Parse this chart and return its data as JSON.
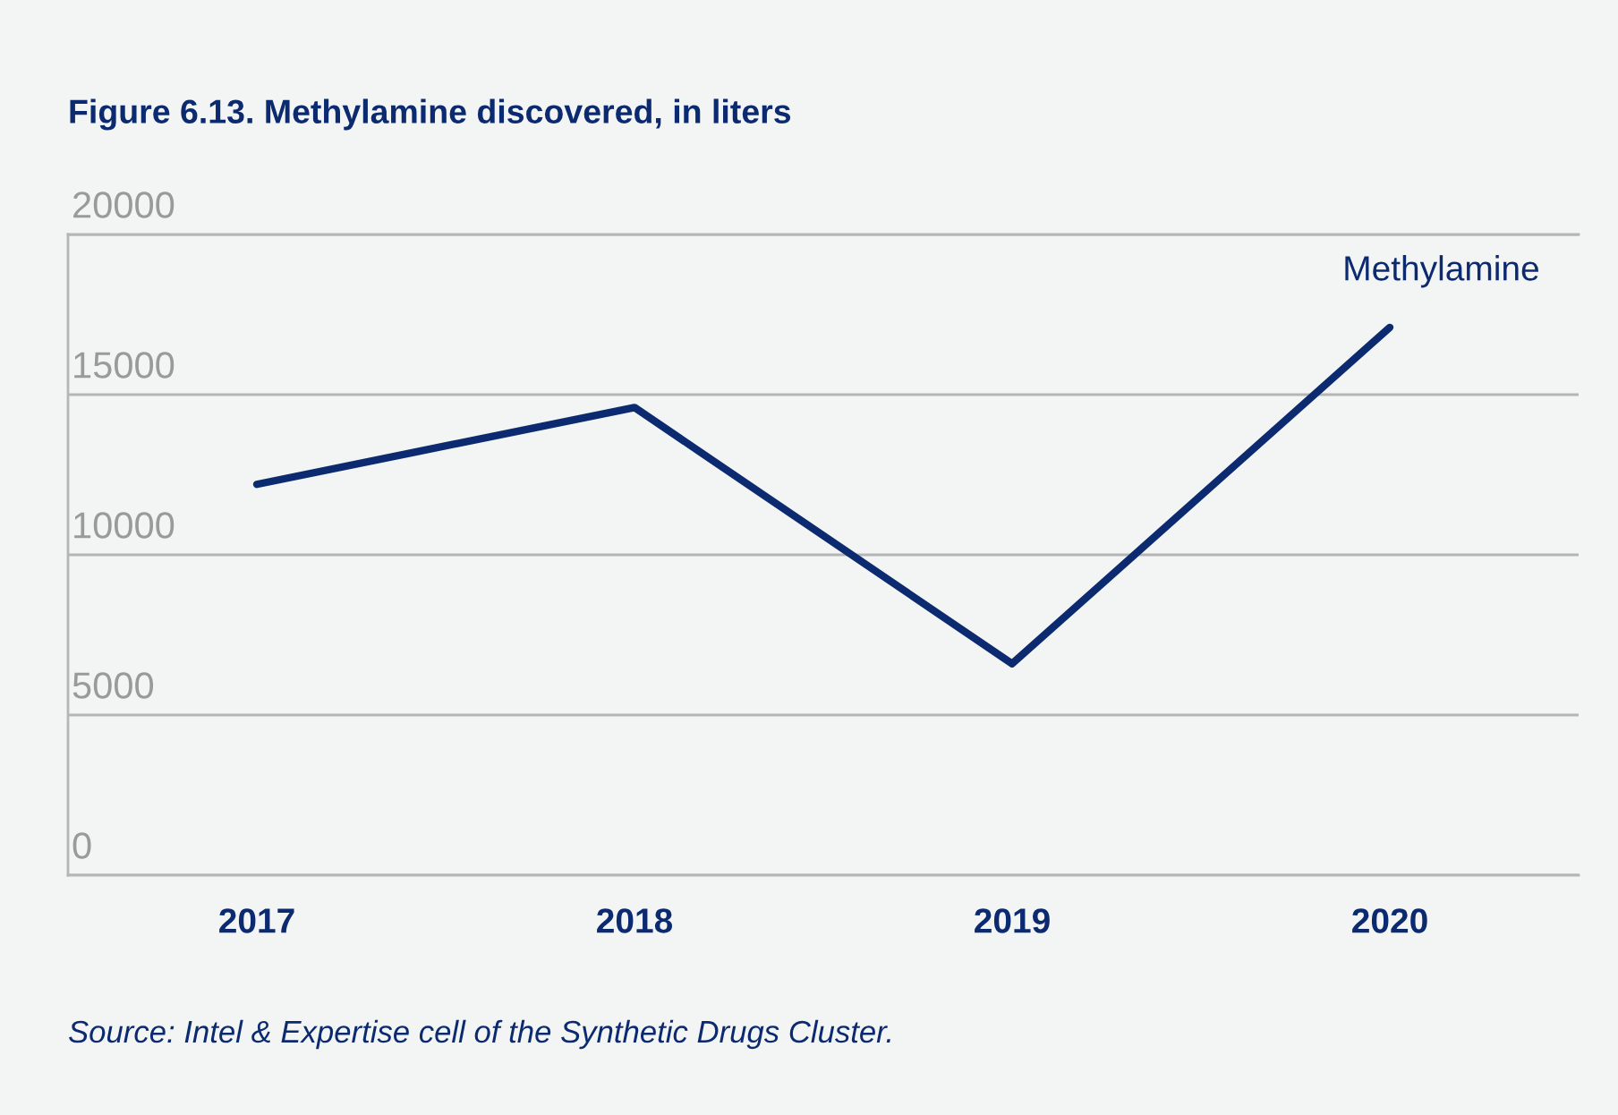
{
  "chart_data": {
    "type": "line",
    "title": "Figure 6.13. Methylamine discovered, in liters",
    "categories": [
      "2017",
      "2018",
      "2019",
      "2020"
    ],
    "series": [
      {
        "name": "Methylamine",
        "color": "#0b2a6f",
        "values": [
          12200,
          14600,
          6600,
          17100
        ]
      }
    ],
    "ylim": [
      0,
      20000
    ],
    "yticks": [
      0,
      5000,
      10000,
      15000,
      20000
    ],
    "grid": "y",
    "line_style": "solid",
    "annotations": [
      "Source: Intel & Expertise cell of the Synthetic Drugs Cluster."
    ]
  }
}
